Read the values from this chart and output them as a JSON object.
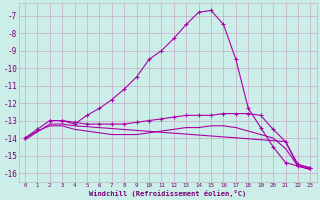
{
  "bg_color": "#cceee8",
  "grid_color": "#c8a8c8",
  "line_color": "#aa00aa",
  "xlabel": "Windchill (Refroidissement éolien,°C)",
  "xlim": [
    -0.5,
    23.5
  ],
  "ylim": [
    -16.5,
    -6.3
  ],
  "yticks": [
    -7,
    -8,
    -9,
    -10,
    -11,
    -12,
    -13,
    -14,
    -15,
    -16
  ],
  "xticks": [
    0,
    1,
    2,
    3,
    4,
    5,
    6,
    7,
    8,
    9,
    10,
    11,
    12,
    13,
    14,
    15,
    16,
    17,
    18,
    19,
    20,
    21,
    22,
    23
  ],
  "curve1_x": [
    0,
    1,
    2,
    3,
    4,
    5,
    6,
    7,
    8,
    9,
    10,
    11,
    12,
    13,
    14,
    15,
    16,
    17,
    18,
    19,
    20,
    21,
    22,
    23
  ],
  "curve1_y": [
    -14.0,
    -13.5,
    -13.0,
    -13.0,
    -13.2,
    -12.7,
    -12.3,
    -11.8,
    -11.2,
    -10.5,
    -9.5,
    -9.0,
    -8.3,
    -7.5,
    -6.8,
    -6.7,
    -7.5,
    -9.5,
    -12.3,
    -13.4,
    -14.5,
    -15.4,
    -15.6,
    -15.7
  ],
  "curve2_x": [
    2,
    3,
    4,
    5,
    6,
    7,
    8,
    9,
    10,
    11,
    12,
    13,
    14,
    15,
    16,
    17,
    18,
    19,
    20,
    21,
    22,
    23
  ],
  "curve2_y": [
    -13.0,
    -13.0,
    -13.1,
    -13.2,
    -13.2,
    -13.2,
    -13.2,
    -13.1,
    -13.0,
    -12.9,
    -12.8,
    -12.7,
    -12.7,
    -12.7,
    -12.6,
    -12.6,
    -12.6,
    -12.7,
    -13.5,
    -14.2,
    -15.5,
    -15.7
  ],
  "curve3_x": [
    0,
    1,
    2,
    3,
    4,
    5,
    6,
    7,
    8,
    9,
    10,
    11,
    12,
    13,
    14,
    15,
    16,
    17,
    18,
    19,
    20,
    21,
    22,
    23
  ],
  "curve3_y": [
    -14.0,
    -13.6,
    -13.3,
    -13.3,
    -13.5,
    -13.6,
    -13.7,
    -13.8,
    -13.8,
    -13.8,
    -13.7,
    -13.6,
    -13.5,
    -13.4,
    -13.4,
    -13.3,
    -13.3,
    -13.4,
    -13.6,
    -13.8,
    -14.0,
    -14.6,
    -15.6,
    -15.8
  ],
  "curve4_x": [
    0,
    2,
    3,
    4,
    5,
    21,
    22,
    23
  ],
  "curve4_y": [
    -14.1,
    -13.2,
    -13.2,
    -13.3,
    -13.35,
    -14.2,
    -15.6,
    -15.8
  ]
}
